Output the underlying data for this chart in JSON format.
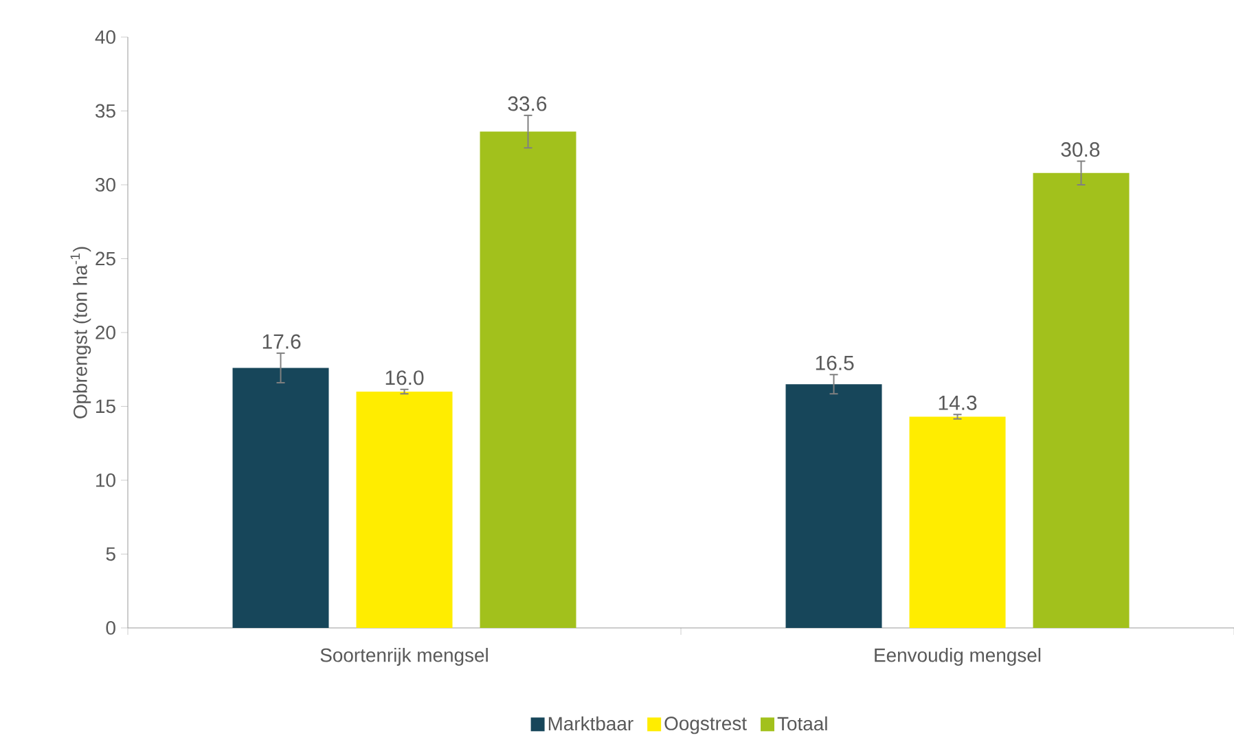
{
  "chart_data": {
    "type": "bar",
    "ylabel": "Opbrengst (ton ha$^{-1}$)",
    "categories": [
      "Soortenrijk mengsel",
      "Eenvoudig mengsel"
    ],
    "series": [
      {
        "name": "Marktbaar",
        "color": "#17465a",
        "values": [
          17.6,
          16.5
        ],
        "errors": [
          1.0,
          0.65
        ],
        "value_labels": [
          "17.6",
          "16.5"
        ]
      },
      {
        "name": "Oogstrest",
        "color": "#ffed00",
        "values": [
          16.0,
          14.3
        ],
        "errors": [
          0.15,
          0.15
        ],
        "value_labels": [
          "16.0",
          "14.3"
        ]
      },
      {
        "name": "Totaal",
        "color": "#a2c11c",
        "values": [
          33.6,
          30.8
        ],
        "errors": [
          1.1,
          0.8
        ],
        "value_labels": [
          "33.6",
          "30.8"
        ]
      }
    ],
    "ylim": [
      0,
      40
    ],
    "yticks": [
      0,
      5,
      10,
      15,
      20,
      25,
      30,
      35,
      40
    ],
    "grid": false,
    "legend": "bottom"
  }
}
